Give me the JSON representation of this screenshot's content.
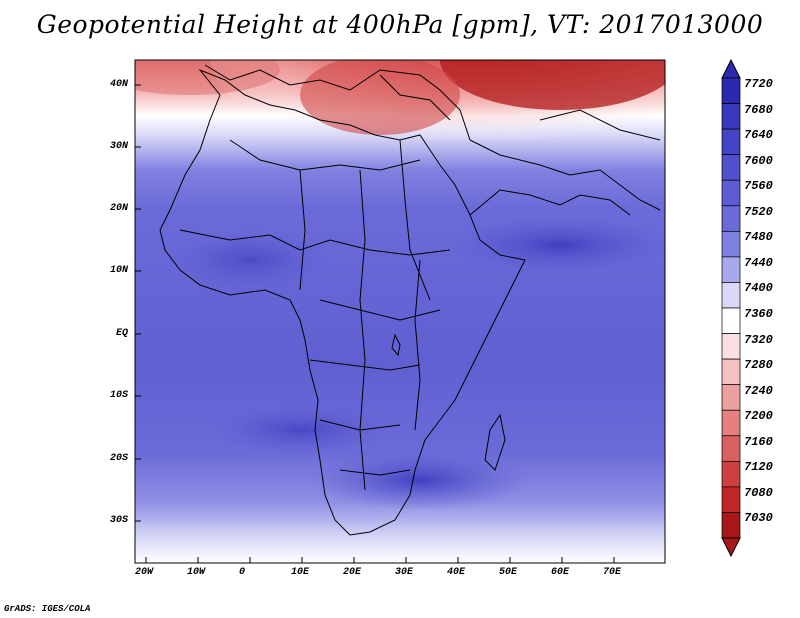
{
  "title": "Geopotential Height at 400hPa [gpm], VT: 2017013000",
  "footer": "GrADS: IGES/COLA",
  "map": {
    "lat_labels": [
      "40N",
      "30N",
      "20N",
      "10N",
      "EQ",
      "10S",
      "20S",
      "30S"
    ],
    "lon_labels": [
      "20W",
      "10W",
      "0",
      "10E",
      "20E",
      "30E",
      "40E",
      "50E",
      "60E",
      "70E"
    ]
  },
  "colorbar": {
    "levels": [
      "7720",
      "7680",
      "7640",
      "7600",
      "7560",
      "7520",
      "7480",
      "7440",
      "7400",
      "7360",
      "7320",
      "7280",
      "7240",
      "7200",
      "7160",
      "7120",
      "7080",
      "7030"
    ],
    "colors": [
      "#2a2ab0",
      "#3838bc",
      "#4444c6",
      "#5050cc",
      "#5c5cd4",
      "#6a6ad8",
      "#8080e0",
      "#a8a8ec",
      "#d8d8f8",
      "#ffffff",
      "#fae0e0",
      "#f4c0c0",
      "#eca0a0",
      "#e48080",
      "#d86060",
      "#cc4040",
      "#c02828",
      "#a81818"
    ]
  },
  "colors": {
    "ocean_blue": "#6a6ad8",
    "deep_blue": "#4848c4",
    "warm_red": "#c83030"
  }
}
